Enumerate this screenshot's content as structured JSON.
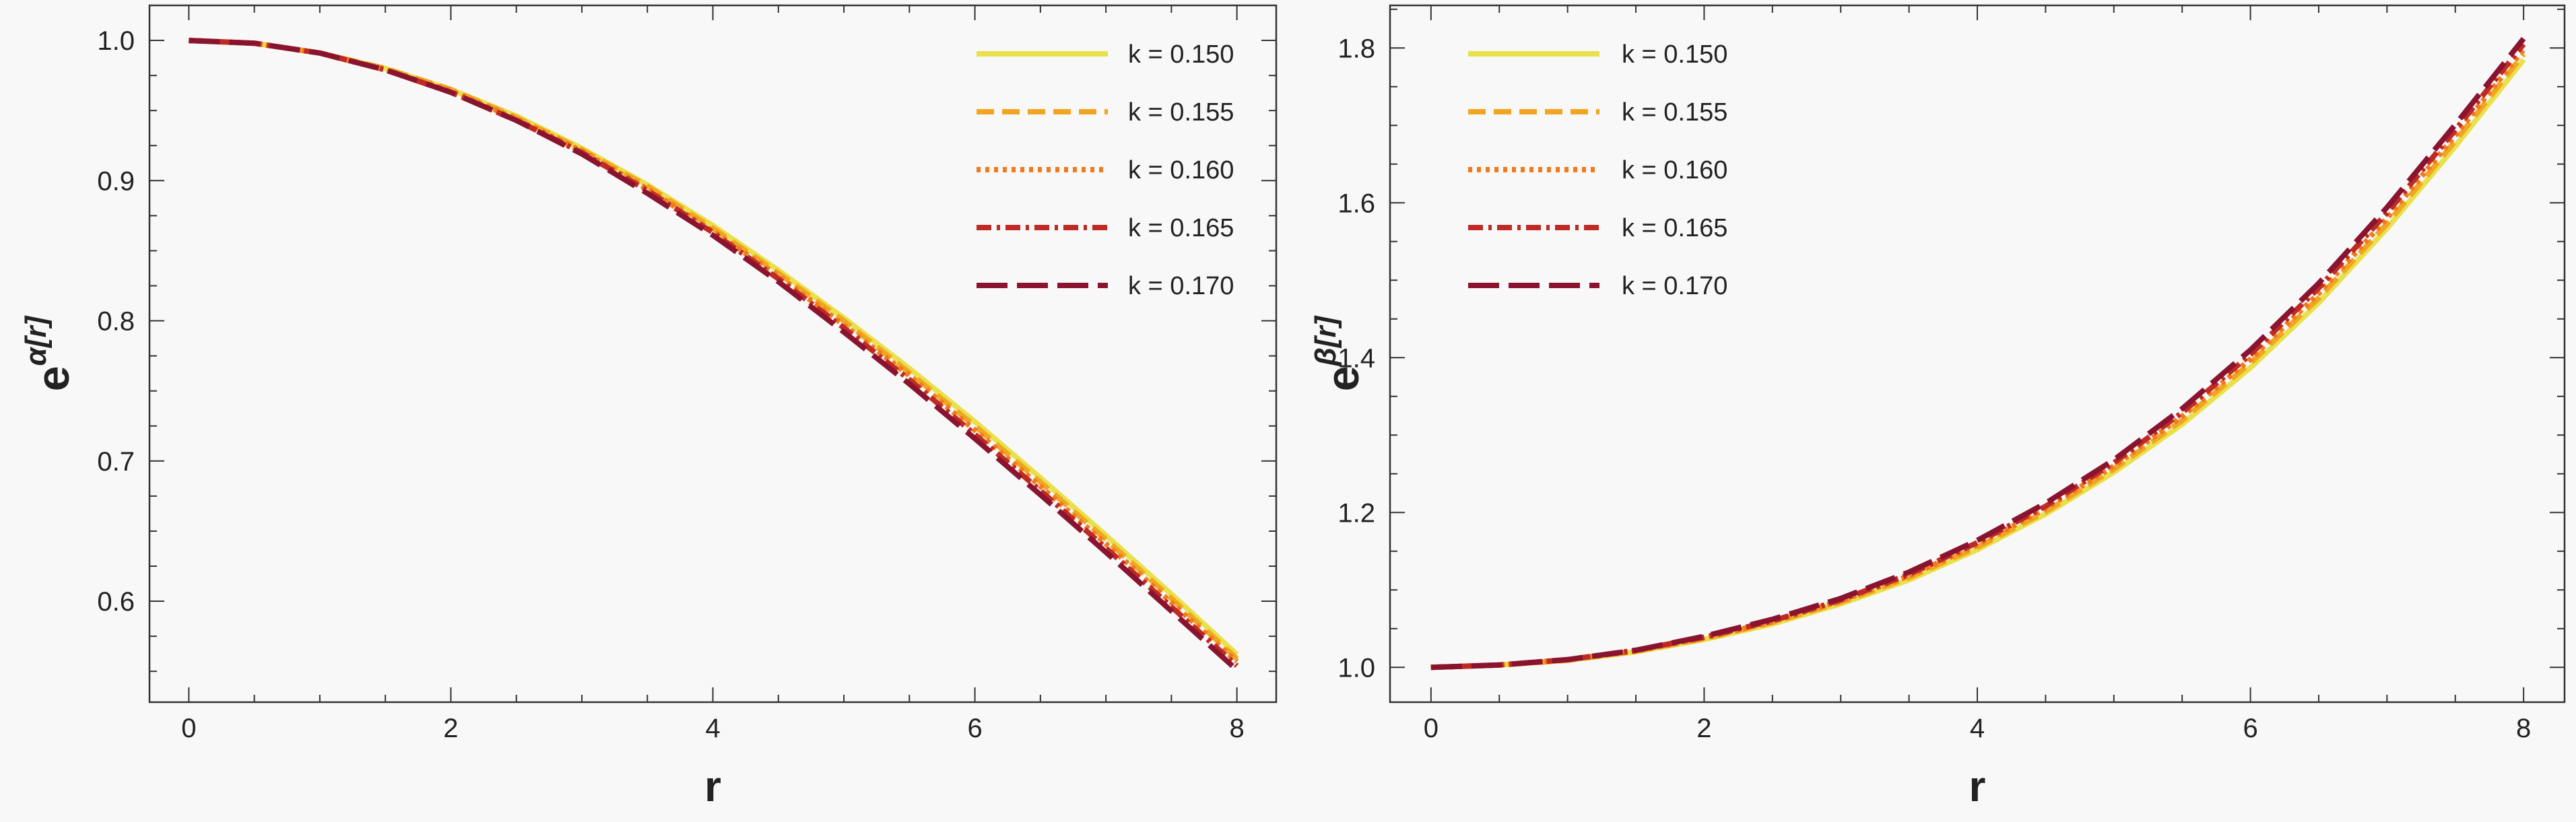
{
  "chart_data": [
    {
      "type": "line",
      "xlabel": "r",
      "ylabel_base": "e",
      "ylabel_sup": "α[r]",
      "xlim": [
        -0.3,
        8.3
      ],
      "ylim": [
        0.528,
        1.025
      ],
      "xticks": [
        0,
        2,
        4,
        6,
        8
      ],
      "xtick_labels": [
        "0",
        "2",
        "4",
        "6",
        "8"
      ],
      "yticks": [
        0.6,
        0.7,
        0.8,
        0.9,
        1.0
      ],
      "ytick_labels": [
        "0.6",
        "0.7",
        "0.8",
        "0.9",
        "1.0"
      ],
      "legend_position": "top-right",
      "grid": false,
      "x": [
        0,
        0.5,
        1,
        1.5,
        2,
        2.5,
        3,
        3.5,
        4,
        4.5,
        5,
        5.5,
        6,
        6.5,
        7,
        7.5,
        8
      ],
      "series": [
        {
          "name": "k = 0.150",
          "values": [
            1.0,
            0.998,
            0.991,
            0.98,
            0.965,
            0.946,
            0.923,
            0.897,
            0.868,
            0.836,
            0.802,
            0.766,
            0.728,
            0.688,
            0.647,
            0.605,
            0.562
          ]
        },
        {
          "name": "k = 0.155",
          "values": [
            1.0,
            0.998,
            0.991,
            0.98,
            0.965,
            0.945,
            0.922,
            0.896,
            0.866,
            0.834,
            0.8,
            0.763,
            0.725,
            0.685,
            0.644,
            0.602,
            0.559
          ]
        },
        {
          "name": "k = 0.160",
          "values": [
            1.0,
            0.998,
            0.991,
            0.979,
            0.964,
            0.944,
            0.921,
            0.894,
            0.864,
            0.832,
            0.797,
            0.761,
            0.722,
            0.682,
            0.641,
            0.599,
            0.557
          ]
        },
        {
          "name": "k = 0.165",
          "values": [
            1.0,
            0.998,
            0.991,
            0.979,
            0.963,
            0.943,
            0.92,
            0.893,
            0.863,
            0.83,
            0.795,
            0.758,
            0.719,
            0.679,
            0.638,
            0.596,
            0.554
          ]
        },
        {
          "name": "k = 0.170",
          "values": [
            1.0,
            0.998,
            0.991,
            0.979,
            0.963,
            0.943,
            0.919,
            0.891,
            0.861,
            0.828,
            0.792,
            0.755,
            0.716,
            0.676,
            0.635,
            0.593,
            0.551
          ]
        }
      ]
    },
    {
      "type": "line",
      "xlabel": "r",
      "ylabel_base": "e",
      "ylabel_sup": "β[r]",
      "xlim": [
        -0.3,
        8.3
      ],
      "ylim": [
        0.955,
        1.855
      ],
      "xticks": [
        0,
        2,
        4,
        6,
        8
      ],
      "xtick_labels": [
        "0",
        "2",
        "4",
        "6",
        "8"
      ],
      "yticks": [
        1.0,
        1.2,
        1.4,
        1.6,
        1.8
      ],
      "ytick_labels": [
        "1.0",
        "1.2",
        "1.4",
        "1.6",
        "1.8"
      ],
      "legend_position": "top-left",
      "grid": false,
      "x": [
        0,
        0.5,
        1,
        1.5,
        2,
        2.5,
        3,
        3.5,
        4,
        4.5,
        5,
        5.5,
        6,
        6.5,
        7,
        7.5,
        8
      ],
      "series": [
        {
          "name": "k = 0.150",
          "values": [
            1.0,
            1.003,
            1.009,
            1.02,
            1.036,
            1.056,
            1.082,
            1.113,
            1.152,
            1.198,
            1.252,
            1.314,
            1.387,
            1.471,
            1.567,
            1.673,
            1.785
          ]
        },
        {
          "name": "k = 0.155",
          "values": [
            1.0,
            1.003,
            1.009,
            1.021,
            1.037,
            1.058,
            1.084,
            1.116,
            1.155,
            1.201,
            1.256,
            1.319,
            1.393,
            1.477,
            1.573,
            1.68,
            1.792
          ]
        },
        {
          "name": "k = 0.160",
          "values": [
            1.0,
            1.003,
            1.01,
            1.021,
            1.038,
            1.059,
            1.086,
            1.118,
            1.158,
            1.205,
            1.26,
            1.324,
            1.398,
            1.483,
            1.58,
            1.687,
            1.798
          ]
        },
        {
          "name": "k = 0.165",
          "values": [
            1.0,
            1.003,
            1.01,
            1.022,
            1.039,
            1.06,
            1.087,
            1.12,
            1.161,
            1.208,
            1.264,
            1.329,
            1.404,
            1.49,
            1.587,
            1.694,
            1.805
          ]
        },
        {
          "name": "k = 0.170",
          "values": [
            1.0,
            1.003,
            1.01,
            1.022,
            1.04,
            1.062,
            1.089,
            1.123,
            1.164,
            1.212,
            1.268,
            1.334,
            1.41,
            1.496,
            1.594,
            1.701,
            1.812
          ]
        }
      ]
    }
  ],
  "series_styles": [
    {
      "color": "#e9e04a",
      "dash": ""
    },
    {
      "color": "#f0a623",
      "dash": "26 12"
    },
    {
      "color": "#f07a1c",
      "dash": "6 7"
    },
    {
      "color": "#bf2b24",
      "dash": "22 8 5 8"
    },
    {
      "color": "#8a1430",
      "dash": "46 14"
    }
  ]
}
